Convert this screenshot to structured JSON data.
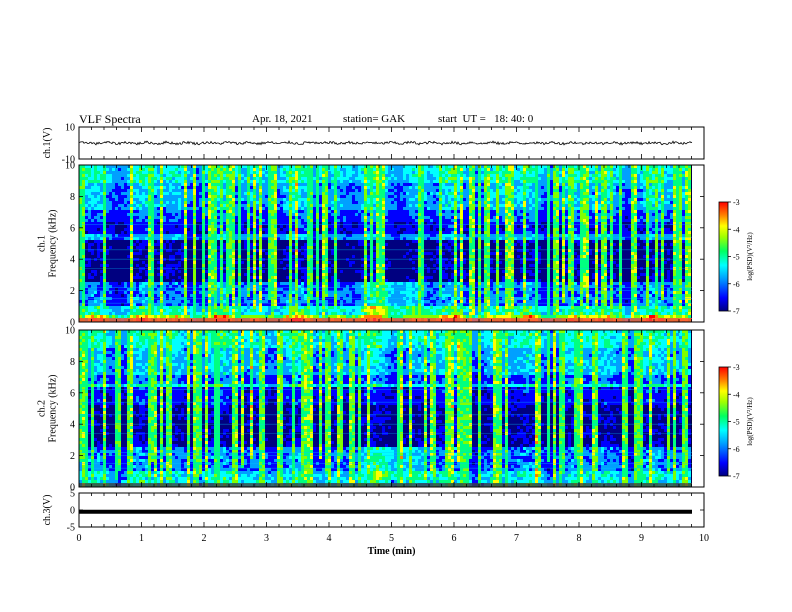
{
  "header": {
    "title": "VLF Spectra",
    "date": "Apr. 18, 2021",
    "station": "station= GAK",
    "start_ut": "start  UT =   18: 40: 0"
  },
  "chart_data": [
    {
      "type": "line",
      "panel": "ch1-waveform",
      "ylabel": "ch.1(V)",
      "ylim": [
        -10,
        10
      ],
      "yticks": [
        10,
        -10
      ],
      "xlim": [
        0,
        10
      ],
      "baseline": 0,
      "trace_range_approx": [
        -2,
        2
      ]
    },
    {
      "type": "heatmap",
      "panel": "ch1-spectrogram",
      "ylabel": "ch.1\nFrequency (kHz)",
      "ylim": [
        0,
        10
      ],
      "yticks": [
        0,
        2,
        4,
        6,
        8,
        10
      ],
      "xlim": [
        0,
        10
      ],
      "colorbar": {
        "label": "log(PSD)(V²/Hz)",
        "range": [
          -7,
          -3
        ],
        "ticks": [
          -3,
          -4,
          -5,
          -6,
          -7
        ]
      }
    },
    {
      "type": "heatmap",
      "panel": "ch2-spectrogram",
      "ylabel": "ch.2\nFrequency (kHz)",
      "ylim": [
        0,
        10
      ],
      "yticks": [
        0,
        2,
        4,
        6,
        8,
        10
      ],
      "xlim": [
        0,
        10
      ],
      "colorbar": {
        "label": "log(PSD)(V²/Hz)",
        "range": [
          -7,
          -3
        ],
        "ticks": [
          -3,
          -4,
          -5,
          -6,
          -7
        ]
      }
    },
    {
      "type": "line",
      "panel": "ch3-waveform",
      "ylabel": "ch.3(V)",
      "ylim": [
        -5,
        5
      ],
      "yticks": [
        5,
        0,
        -5
      ],
      "xlim": [
        0,
        10
      ],
      "constant_value": -0.5
    }
  ],
  "xaxis": {
    "label": "Time  (min)",
    "ticks": [
      "0",
      "1",
      "2",
      "3",
      "4",
      "5",
      "6",
      "7",
      "8",
      "9",
      "10"
    ]
  },
  "colors": {
    "spectrum": [
      "#000080",
      "#0000ff",
      "#00a0ff",
      "#00ffff",
      "#00ff80",
      "#80ff00",
      "#ffff00",
      "#ff8000",
      "#ff0000"
    ]
  }
}
